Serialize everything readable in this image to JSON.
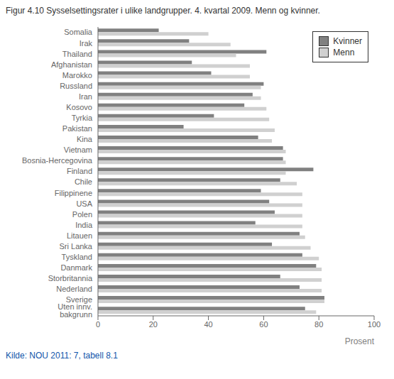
{
  "chart_data": {
    "type": "bar",
    "orientation": "horizontal",
    "title": "Figur 4.10 Sysselsettingsrater i ulike landgrupper. 4. kvartal 2009. Menn og kvinner.",
    "x_label": "Prosent",
    "annotations": [
      "Kilde: NOU 2011: 7, tabell 8.1"
    ],
    "categories": [
      "Somalia",
      "Irak",
      "Thailand",
      "Afghanistan",
      "Marokko",
      "Russland",
      "Iran",
      "Kosovo",
      "Tyrkia",
      "Pakistan",
      "Kina",
      "Vietnam",
      "Bosnia-Hercegovina",
      "Finland",
      "Chile",
      "Filippinene",
      "USA",
      "Polen",
      "India",
      "Litauen",
      "Sri Lanka",
      "Tyskland",
      "Danmark",
      "Storbritannia",
      "Nederland",
      "Sverige",
      "Uten innv. bakgrunn"
    ],
    "series": [
      {
        "name": "Kvinner",
        "color": "#808080",
        "values": [
          22,
          33,
          61,
          34,
          41,
          60,
          56,
          53,
          42,
          31,
          58,
          67,
          67,
          78,
          66,
          59,
          62,
          64,
          57,
          73,
          63,
          74,
          79,
          66,
          73,
          82,
          75
        ]
      },
      {
        "name": "Menn",
        "color": "#d0d0d0",
        "values": [
          40,
          48,
          50,
          55,
          55,
          59,
          59,
          61,
          62,
          64,
          63,
          68,
          68,
          68,
          72,
          74,
          74,
          74,
          74,
          75,
          77,
          80,
          81,
          81,
          81,
          82,
          79
        ]
      }
    ],
    "xlim": [
      0,
      100
    ],
    "xticks": [
      0,
      20,
      40,
      60,
      80,
      100
    ],
    "grid": false,
    "legend": "upper right"
  }
}
